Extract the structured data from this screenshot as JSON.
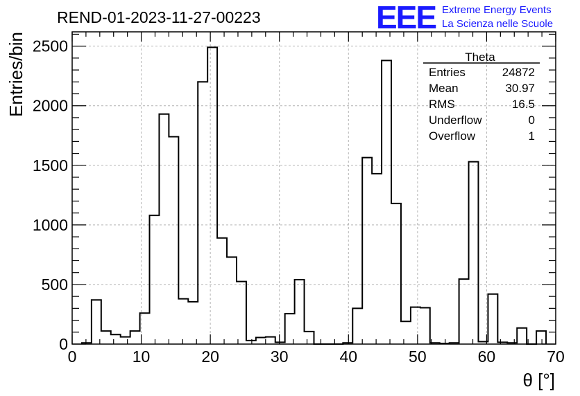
{
  "chart_data": {
    "type": "bar",
    "title": "REND-01-2023-11-27-00223",
    "xlabel": "θ [°]",
    "ylabel": "Entries/bin",
    "xlim": [
      0,
      70
    ],
    "ylim": [
      0,
      2620
    ],
    "grid": true,
    "x_ticks": [
      0,
      10,
      20,
      30,
      40,
      50,
      60,
      70
    ],
    "y_ticks": [
      0,
      500,
      1000,
      1500,
      2000,
      2500
    ],
    "bin_width": 1.4,
    "bin_edges_start": 1.4,
    "values": [
      10,
      370,
      110,
      80,
      60,
      110,
      260,
      1080,
      1930,
      1740,
      380,
      355,
      2200,
      2490,
      890,
      730,
      525,
      30,
      55,
      60,
      15,
      255,
      540,
      105,
      0,
      0,
      0,
      10,
      300,
      1565,
      1430,
      2380,
      1180,
      190,
      310,
      305,
      10,
      5,
      10,
      545,
      1530,
      20,
      420,
      15,
      10,
      135,
      0,
      110
    ]
  },
  "stats_box": {
    "title": "Theta",
    "rows": [
      {
        "label": "Entries",
        "value": "24872"
      },
      {
        "label": "Mean",
        "value": "30.97"
      },
      {
        "label": "RMS",
        "value": "16.5"
      },
      {
        "label": "Underflow",
        "value": "0"
      },
      {
        "label": "Overflow",
        "value": "1"
      }
    ]
  },
  "logo": {
    "mark": "EEE",
    "line1": "Extreme Energy Events",
    "line2": "La Scienza nelle Scuole",
    "color": "#1a1aff"
  }
}
